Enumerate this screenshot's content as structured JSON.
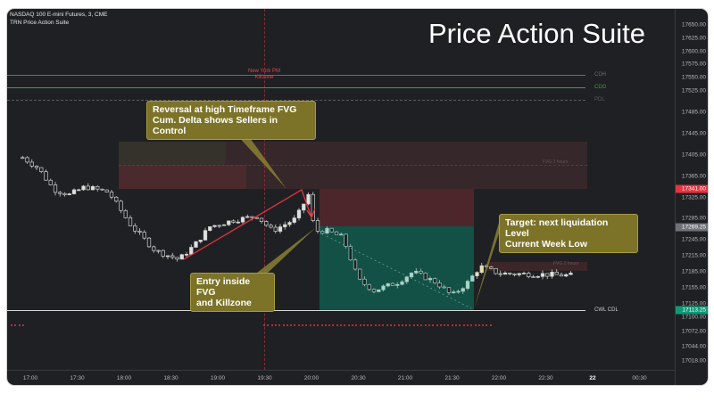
{
  "header": {
    "symbol": "NASDAQ 100 E-mini Futures, 3, CME",
    "indicator": "TRN Price Action Suite",
    "title": "Price Action Suite"
  },
  "session": {
    "label_line1": "New York PM",
    "label_line2": "Killzone",
    "color": "#e0444c"
  },
  "levels": [
    {
      "label": "CDH",
      "price": 17555,
      "color": "#6b6b6b",
      "style": "solid"
    },
    {
      "label": "CDO",
      "price": 17532,
      "color": "#3f9a4a",
      "style": "solid"
    },
    {
      "label": "PDL",
      "price": 17508,
      "color": "#5a5a5a",
      "style": "dashed"
    },
    {
      "label": "CWL CDL",
      "price": 17113.25,
      "color": "#d8d8d8",
      "style": "solid"
    }
  ],
  "fvg_labels": {
    "upper": "FVG 2 hours",
    "lower": "FVG 2 hours"
  },
  "callouts": {
    "reversal": [
      "Reversal at high Timeframe FVG",
      "Cum. Delta shows Sellers in Control"
    ],
    "entry": [
      "Entry inside FVG",
      "and Killzone"
    ],
    "target": [
      "Target: next liquidation Level",
      "Current Week Low"
    ]
  },
  "price_axis": {
    "labels": [
      "17650.00",
      "17625.00",
      "17600.00",
      "17575.00",
      "17550.00",
      "17525.00",
      "17485.00",
      "17445.00",
      "17405.00",
      "17365.00",
      "17325.00",
      "17285.00",
      "17245.00",
      "17215.00",
      "17185.00",
      "17155.00",
      "17125.00",
      "17100.00",
      "17072.00",
      "17044.00",
      "17018.00"
    ],
    "badges": [
      {
        "text": "17341.00",
        "color": "#e8323f"
      },
      {
        "text": "17269.25",
        "color": "#70727a"
      },
      {
        "text": "17113.25",
        "color": "#0f9a77"
      }
    ]
  },
  "time_axis": {
    "labels": [
      "17:00",
      "17:30",
      "18:00",
      "18:30",
      "19:00",
      "19:30",
      "20:00",
      "20:30",
      "21:00",
      "21:30",
      "22:00",
      "22:30",
      "22",
      "00:30"
    ],
    "bold_label": "22"
  },
  "price_path": [
    [
      "16:55",
      17400
    ],
    [
      "17:05",
      17380
    ],
    [
      "17:15",
      17340
    ],
    [
      "17:25",
      17330
    ],
    [
      "17:35",
      17345
    ],
    [
      "17:50",
      17335
    ],
    [
      "18:05",
      17270
    ],
    [
      "18:20",
      17225
    ],
    [
      "18:35",
      17208
    ],
    [
      "18:45",
      17235
    ],
    [
      "18:55",
      17270
    ],
    [
      "19:10",
      17282
    ],
    [
      "19:25",
      17290
    ],
    [
      "19:35",
      17262
    ],
    [
      "19:50",
      17285
    ],
    [
      "19:58",
      17330
    ],
    [
      "20:02",
      17262
    ],
    [
      "20:10",
      17262
    ],
    [
      "20:20",
      17250
    ],
    [
      "20:30",
      17170
    ],
    [
      "20:40",
      17150
    ],
    [
      "20:55",
      17165
    ],
    [
      "21:05",
      17185
    ],
    [
      "21:20",
      17165
    ],
    [
      "21:30",
      17140
    ],
    [
      "21:40",
      17165
    ],
    [
      "21:48",
      17195
    ],
    [
      "22:00",
      17182
    ],
    [
      "22:30",
      17180
    ],
    [
      "22:48",
      17178
    ]
  ],
  "colors": {
    "accent_red": "#e8323f",
    "callout": "#7c7328",
    "tp_zone": "#135146",
    "sl_zone": "#4a262b",
    "fvg": "#3b2629"
  }
}
